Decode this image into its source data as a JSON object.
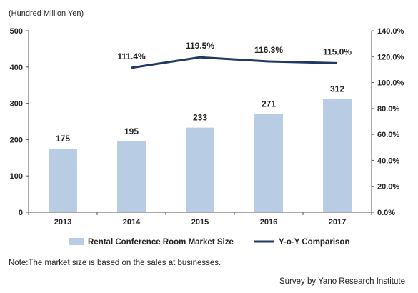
{
  "chart_data": {
    "type": "bar",
    "unit_label": "(Hundred Million Yen)",
    "categories": [
      "2013",
      "2014",
      "2015",
      "2016",
      "2017"
    ],
    "series": [
      {
        "name": "Rental Conference Room Market Size",
        "kind": "bar",
        "axis": "left",
        "color": "#b8cce4",
        "values": [
          175,
          195,
          233,
          271,
          312
        ]
      },
      {
        "name": "Y-o-Y Comparison",
        "kind": "line",
        "axis": "right",
        "color": "#1f3864",
        "values": [
          null,
          111.4,
          119.5,
          116.3,
          115.0
        ],
        "labels": [
          "",
          "111.4%",
          "119.5%",
          "116.3%",
          "115.0%"
        ]
      }
    ],
    "left_axis": {
      "ylim": [
        0,
        500
      ],
      "ticks": [
        0,
        100,
        200,
        300,
        400,
        500
      ],
      "tick_labels": [
        "0",
        "100",
        "200",
        "300",
        "400",
        "500"
      ]
    },
    "right_axis": {
      "ylim": [
        0,
        140
      ],
      "ticks": [
        0,
        20,
        40,
        60,
        80,
        100,
        120,
        140
      ],
      "tick_labels": [
        "0.0%",
        "20.0%",
        "40.0%",
        "60.0%",
        "80.0%",
        "100.0%",
        "120.0%",
        "140.0%"
      ]
    },
    "grid": false,
    "legend_position": "bottom"
  },
  "footer": {
    "note": "Note:The market size is based on the sales at businesses.",
    "source": "Survey by Yano Research Institute"
  }
}
